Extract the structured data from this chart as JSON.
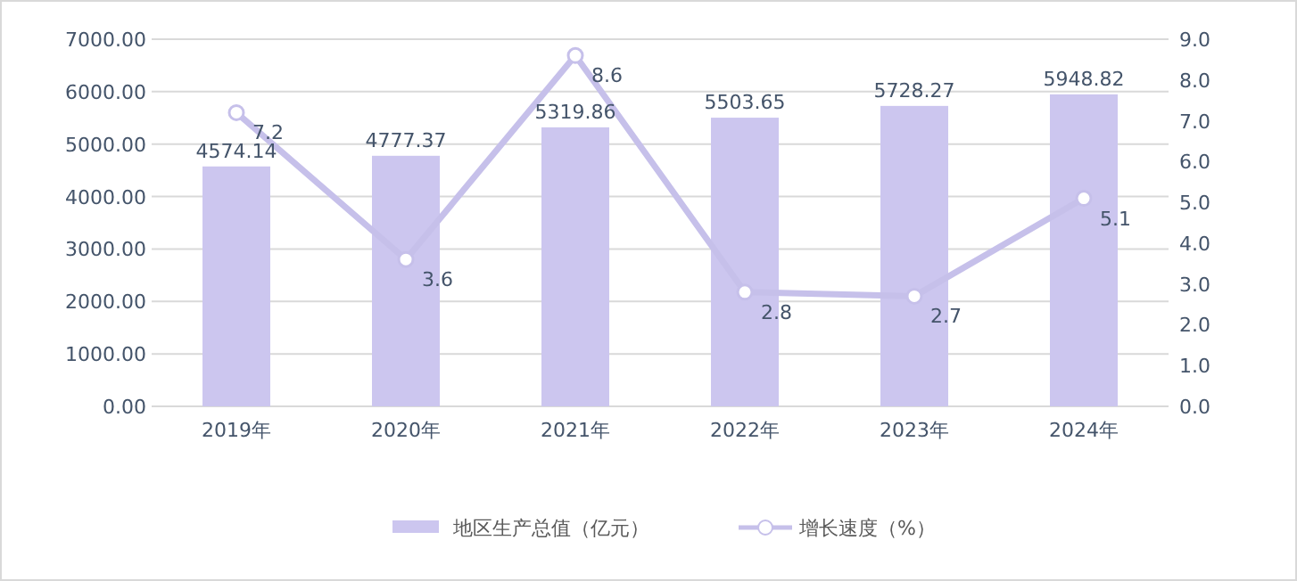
{
  "chart_data": {
    "type": "bar",
    "categories": [
      "2019年",
      "2020年",
      "2021年",
      "2022年",
      "2023年",
      "2024年"
    ],
    "series": [
      {
        "name": "地区生产总值（亿元）",
        "color": "#ccc6ef",
        "values": [
          4574.14,
          4777.37,
          5319.86,
          5503.65,
          5728.27,
          5948.82
        ]
      },
      {
        "name": "增长速度（%）",
        "type": "line",
        "axis": "y2",
        "color": "#c6c0ea",
        "values": [
          7.2,
          3.6,
          8.6,
          2.8,
          2.7,
          5.1
        ]
      }
    ],
    "ylim": [
      0,
      7000
    ],
    "yticks": [
      {
        "value": 0,
        "label": "0.00"
      },
      {
        "value": 1000,
        "label": "1000.00"
      },
      {
        "value": 2000,
        "label": "2000.00"
      },
      {
        "value": 3000,
        "label": "3000.00"
      },
      {
        "value": 4000,
        "label": "4000.00"
      },
      {
        "value": 5000,
        "label": "5000.00"
      },
      {
        "value": 6000,
        "label": "6000.00"
      },
      {
        "value": 7000,
        "label": "7000.00"
      }
    ],
    "y2lim": [
      0,
      9
    ],
    "y2ticks": [
      {
        "value": 0,
        "label": "0.0"
      },
      {
        "value": 1,
        "label": "1.0"
      },
      {
        "value": 2,
        "label": "2.0"
      },
      {
        "value": 3,
        "label": "3.0"
      },
      {
        "value": 4,
        "label": "4.0"
      },
      {
        "value": 5,
        "label": "5.0"
      },
      {
        "value": 6,
        "label": "6.0"
      },
      {
        "value": 7,
        "label": "7.0"
      },
      {
        "value": 8,
        "label": "8.0"
      },
      {
        "value": 9,
        "label": "9.0"
      }
    ],
    "marker": "circle",
    "line_style": "solid",
    "data_labels": true,
    "grid": "y",
    "legend": "bottom"
  }
}
